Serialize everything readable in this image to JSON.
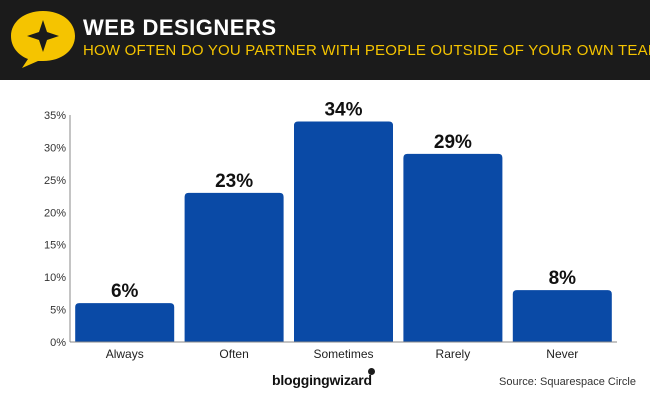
{
  "header": {
    "title": "WEB DESIGNERS",
    "subtitle": "HOW OFTEN DO YOU PARTNER WITH PEOPLE OUTSIDE OF YOUR OWN TEAM?",
    "badge_icon": "star-speech-bubble-icon",
    "badge_color": "#f5c400",
    "background_color": "#1b1b1b",
    "subtitle_color": "#f5c400"
  },
  "chart_data": {
    "type": "bar",
    "categories": [
      "Always",
      "Often",
      "Sometimes",
      "Rarely",
      "Never"
    ],
    "values": [
      6,
      23,
      34,
      29,
      8
    ],
    "data_labels": [
      "6%",
      "23%",
      "34%",
      "29%",
      "8%"
    ],
    "ylim": [
      0,
      35
    ],
    "yticks": [
      0,
      5,
      10,
      15,
      20,
      25,
      30,
      35
    ],
    "ytick_labels": [
      "0%",
      "5%",
      "10%",
      "15%",
      "20%",
      "25%",
      "30%",
      "35%"
    ],
    "grid": false,
    "bar_color": "#0a4aa6"
  },
  "footer": {
    "brand": "bloggingwizard",
    "source": "Source: Squarespace Circle"
  }
}
